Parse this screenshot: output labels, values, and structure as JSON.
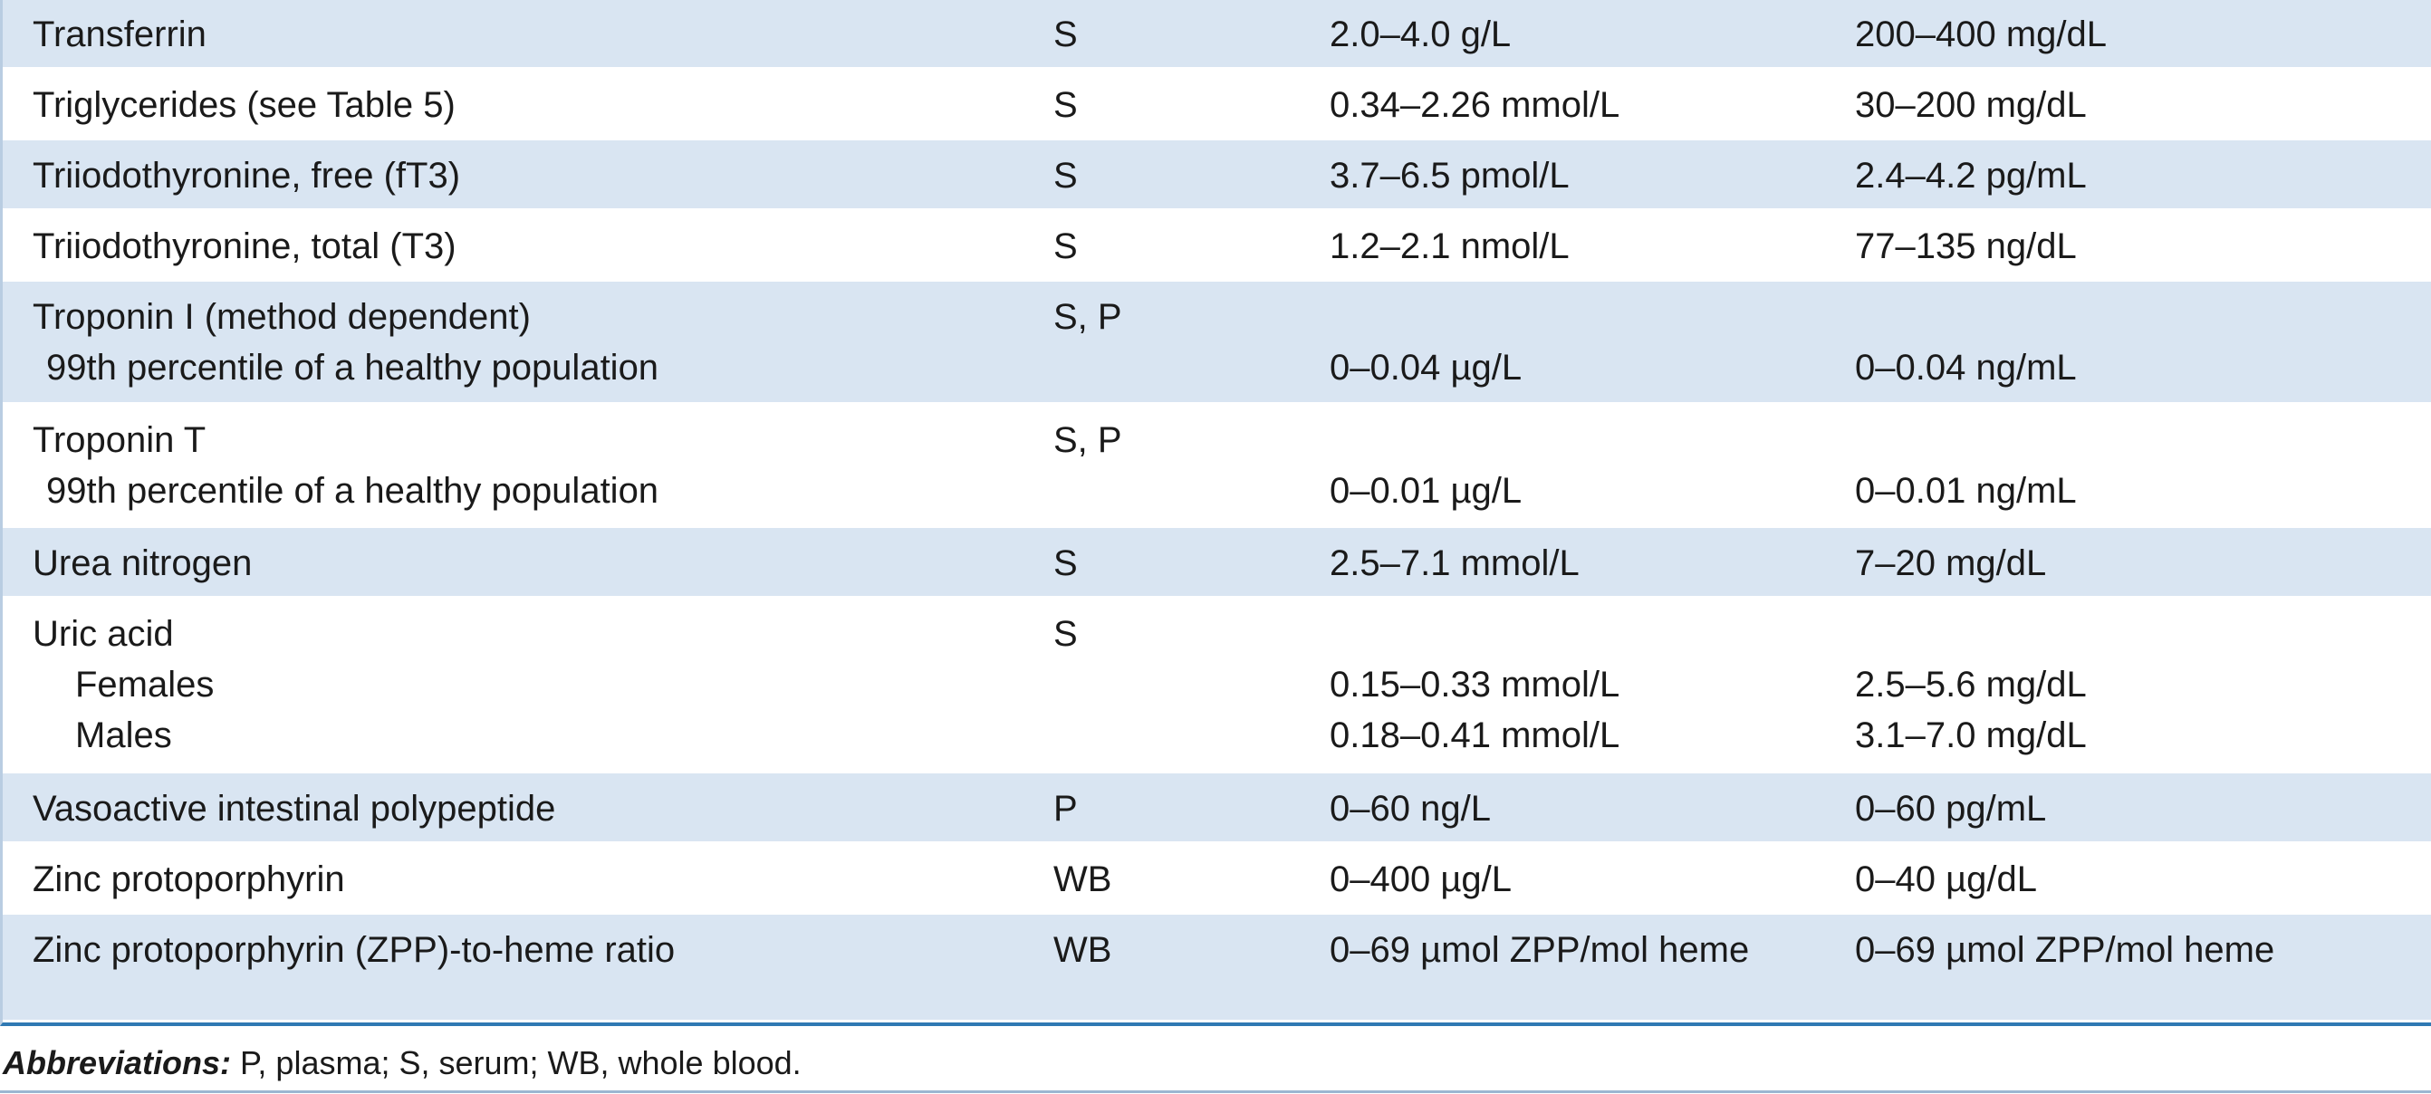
{
  "table": {
    "rows": [
      {
        "name": "Transferrin",
        "specimen": "S",
        "si": "2.0–4.0 g/L",
        "conventional": "200–400 mg/dL",
        "subrows": []
      },
      {
        "name": "Triglycerides (see Table 5)",
        "specimen": "S",
        "si": "0.34–2.26 mmol/L",
        "conventional": "30–200 mg/dL",
        "subrows": []
      },
      {
        "name": "Triiodothyronine, free (fT3)",
        "specimen": "S",
        "si": "3.7–6.5 pmol/L",
        "conventional": "2.4–4.2 pg/mL",
        "subrows": []
      },
      {
        "name": "Triiodothyronine, total (T3)",
        "specimen": "S",
        "si": "1.2–2.1 nmol/L",
        "conventional": "77–135 ng/dL",
        "subrows": []
      },
      {
        "name": "Troponin I (method dependent)",
        "specimen": "S, P",
        "si": "",
        "conventional": "",
        "subrows": [
          {
            "label": "99th percentile of a healthy population",
            "si": "0–0.04 µg/L",
            "conventional": "0–0.04 ng/mL"
          }
        ]
      },
      {
        "name": "Troponin T",
        "specimen": "S, P",
        "si": "",
        "conventional": "",
        "subrows": [
          {
            "label": "99th percentile of a healthy population",
            "si": "0–0.01 µg/L",
            "conventional": "0–0.01 ng/mL"
          }
        ]
      },
      {
        "name": "Urea nitrogen",
        "specimen": "S",
        "si": "2.5–7.1 mmol/L",
        "conventional": "7–20 mg/dL",
        "subrows": []
      },
      {
        "name": "Uric acid",
        "specimen": "S",
        "si": "",
        "conventional": "",
        "subrows": [
          {
            "label": "Females",
            "si": "0.15–0.33 mmol/L",
            "conventional": "2.5–5.6 mg/dL"
          },
          {
            "label": "Males",
            "si": "0.18–0.41 mmol/L",
            "conventional": "3.1–7.0 mg/dL"
          }
        ]
      },
      {
        "name": "Vasoactive intestinal polypeptide",
        "specimen": "P",
        "si": "0–60 ng/L",
        "conventional": "0–60 pg/mL",
        "subrows": []
      },
      {
        "name": "Zinc protoporphyrin",
        "specimen": "WB",
        "si": "0–400 µg/L",
        "conventional": "0–40 µg/dL",
        "subrows": []
      },
      {
        "name": "Zinc protoporphyrin (ZPP)-to-heme ratio",
        "specimen": "WB",
        "si": "0–69 µmol ZPP/mol heme",
        "conventional": "0–69 µmol ZPP/mol heme",
        "subrows": []
      }
    ]
  },
  "footnote": {
    "label": "Abbreviations:",
    "text": " P, plasma; S, serum; WB, whole blood."
  },
  "colors": {
    "row_shade": "#d9e5f2",
    "row_plain": "#ffffff",
    "rule_blue": "#2f79b3"
  }
}
